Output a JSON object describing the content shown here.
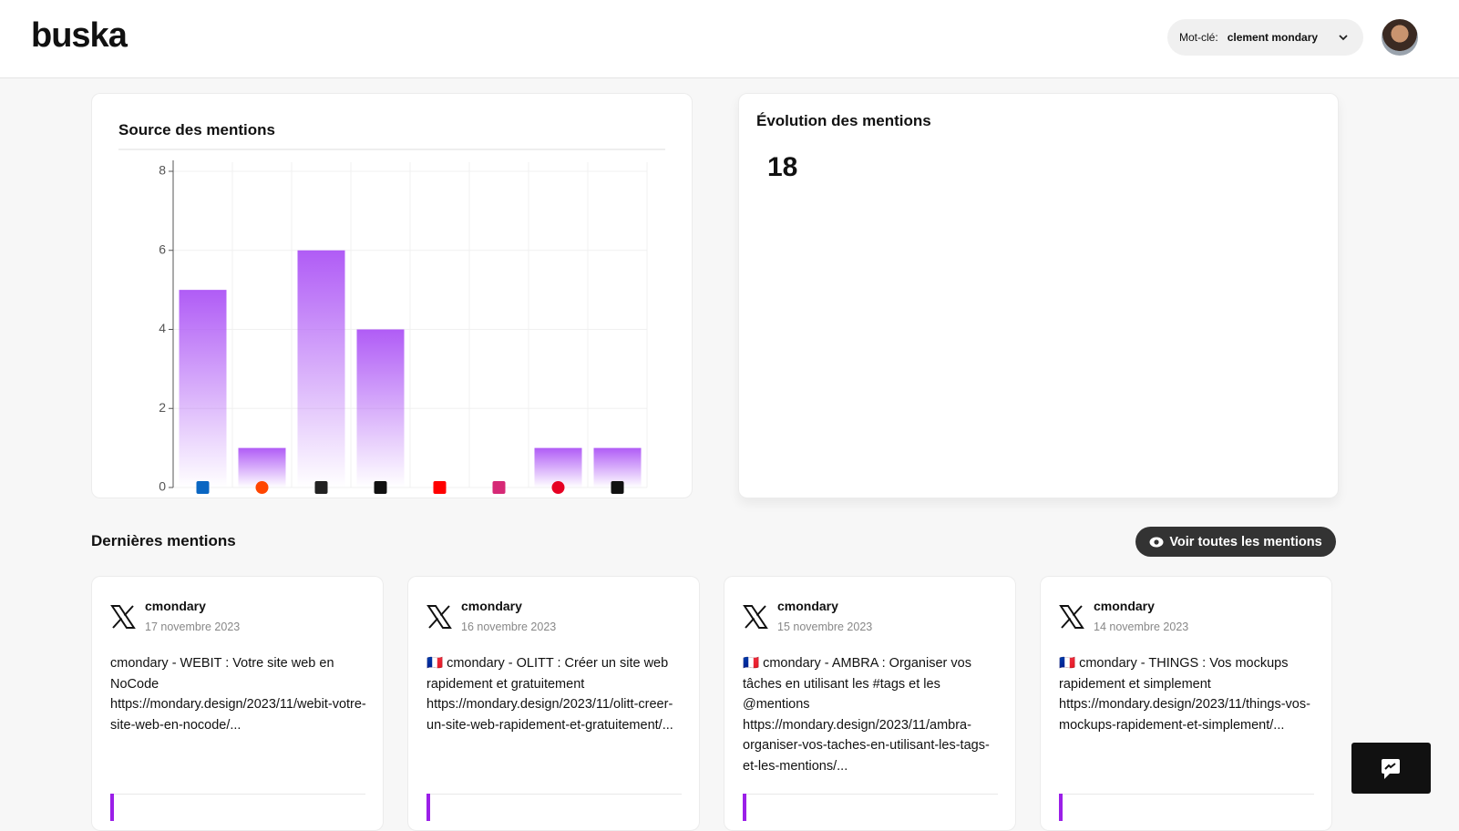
{
  "header": {
    "logo": "buska",
    "keyword_label": "Mot-clé:",
    "keyword": "clement mondary"
  },
  "chart_data": {
    "type": "bar",
    "title": "Source des mentions",
    "categories": [
      null,
      null,
      null,
      null,
      null,
      null,
      null,
      null
    ],
    "values": [
      5,
      1,
      6,
      4,
      0,
      0,
      1,
      1
    ],
    "color": "#b05cf6",
    "ylim": [
      0,
      8
    ],
    "yticks": [
      0,
      2,
      4,
      6,
      8
    ],
    "grid": true
  },
  "evolution": {
    "title": "Évolution des mentions",
    "total": "18"
  },
  "latest": {
    "title": "Dernières mentions",
    "button": "Voir toutes les mentions",
    "mentions": [
      {
        "author": "cmondary",
        "date": "17 novembre 2023",
        "text": "cmondary - WEBIT : Votre site web en NoCode https://mondary.design/2023/11/webit-votre-site-web-en-nocode/..."
      },
      {
        "author": "cmondary",
        "date": "16 novembre 2023",
        "text": "🇫🇷 cmondary - OLITT : Créer un site web rapidement et gratuitement https://mondary.design/2023/11/olitt-creer-un-site-web-rapidement-et-gratuitement/..."
      },
      {
        "author": "cmondary",
        "date": "15 novembre 2023",
        "text": "🇫🇷 cmondary - AMBRA : Organiser vos tâches en utilisant les #tags et les @mentions https://mondary.design/2023/11/ambra-organiser-vos-taches-en-utilisant-les-tags-et-les-mentions/..."
      },
      {
        "author": "cmondary",
        "date": "14 novembre 2023",
        "text": "🇫🇷 cmondary - THINGS : Vos mockups rapidement et simplement https://mondary.design/2023/11/things-vos-mockups-rapidement-et-simplement/..."
      }
    ]
  }
}
